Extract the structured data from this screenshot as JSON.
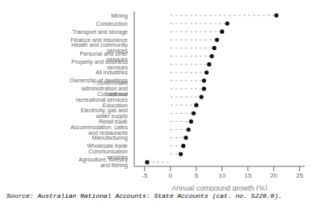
{
  "chart_data": {
    "type": "dot",
    "orientation": "horizontal",
    "xlabel": "Annual compound growth (%)",
    "annotations": [
      "Source: Australian National Accounts: State Accounts (cat. no. 5220.0)."
    ],
    "categories": [
      "Mining",
      "Construction",
      "Transport and storage",
      "Finance and insurance",
      "Health and community services",
      "Personal and other services",
      "Property and business services",
      "All industries",
      "Ownership of dwellings",
      "Government administration and defence",
      "Cultural and recreational services",
      "Education",
      "Electricity, gas and water supply",
      "Retail trade",
      "Accommodation, cafes and restaurants",
      "Manufacturing",
      "Wholesale trade",
      "Communication services",
      "Agriculture, forestry and fishing"
    ],
    "values": [
      20.5,
      11.0,
      10.0,
      9.0,
      8.5,
      8.0,
      7.5,
      7.0,
      6.5,
      6.5,
      6.0,
      5.0,
      4.5,
      4.0,
      3.5,
      3.0,
      2.5,
      2.0,
      -4.5
    ],
    "color": "#111111",
    "marker": "circle",
    "line_style": "dashed",
    "xlim": [
      -7,
      26
    ],
    "xticks": [
      -5,
      0,
      5,
      10,
      15,
      20,
      25
    ],
    "grid": false
  }
}
